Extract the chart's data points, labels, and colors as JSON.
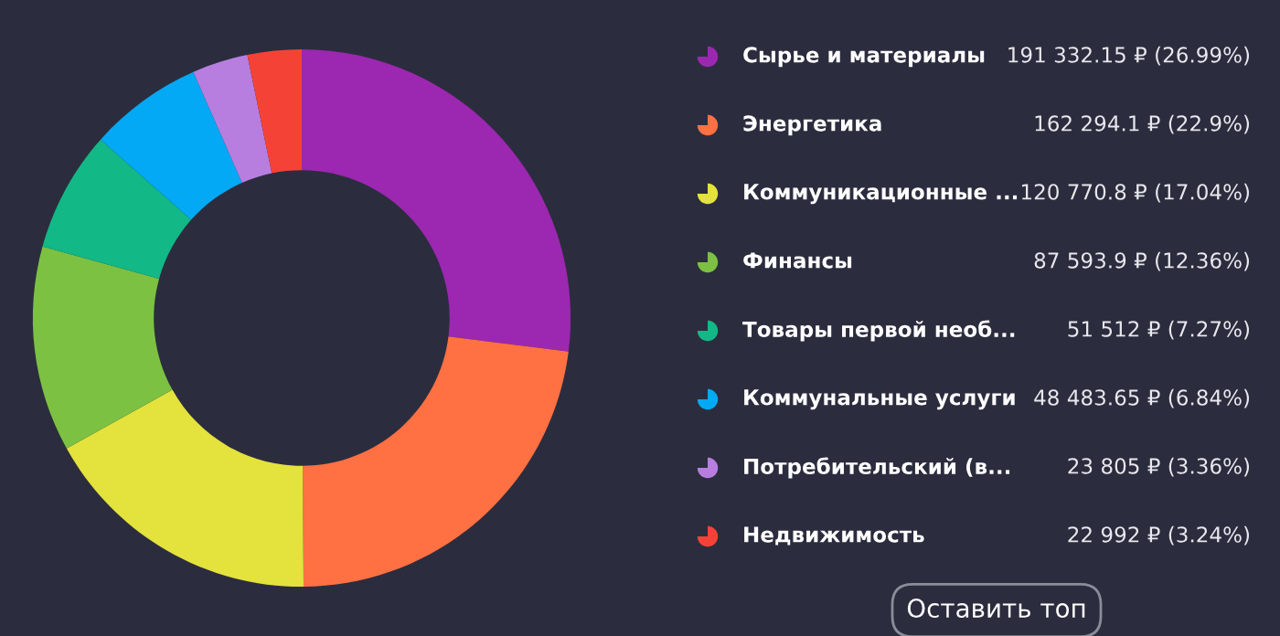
{
  "chart_data": {
    "type": "donut",
    "categories": [
      "Сырье и материалы",
      "Энергетика",
      "Коммуникационные ...",
      "Финансы",
      "Товары первой необ...",
      "Коммунальные услуги",
      "Потребительский (в...",
      "Недвижимость"
    ],
    "values": [
      191332.15,
      162294.1,
      120770.8,
      87593.9,
      51512,
      48483.65,
      23805,
      22992
    ],
    "colors": [
      "#9c27b0",
      "#ff7043",
      "#e4e23c",
      "#7cc142",
      "#12b886",
      "#03a9f4",
      "#b77ee0",
      "#f44336"
    ],
    "value_labels": [
      "191 332.15 ₽ (26.99%)",
      "162 294.1 ₽ (22.9%)",
      "120 770.8 ₽ (17.04%)",
      "87 593.9 ₽ (12.36%)",
      "51 512 ₽ (7.27%)",
      "48 483.65 ₽ (6.84%)",
      "23 805 ₽ (3.36%)",
      "22 992 ₽ (3.24%)"
    ],
    "legend": "right",
    "annotations": [
      "Оставить топ"
    ]
  }
}
